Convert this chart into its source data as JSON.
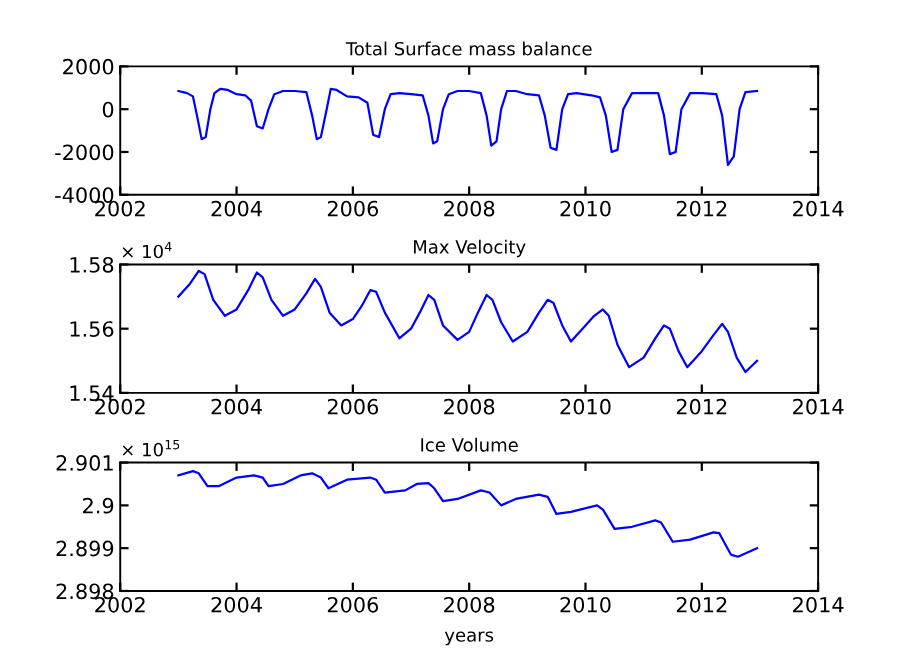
{
  "chart_data": [
    {
      "type": "line",
      "title": "Total Surface mass balance",
      "xlim": [
        2002,
        2014
      ],
      "xticks": [
        2002,
        2004,
        2006,
        2008,
        2010,
        2012,
        2014
      ],
      "ylim": [
        -4000,
        2000
      ],
      "yticks": [
        -4000,
        -2000,
        0,
        2000
      ],
      "grid": false,
      "legend": false,
      "series": [
        {
          "color": "#0000ff",
          "x": [
            2003.0,
            2003.15,
            2003.25,
            2003.32,
            2003.4,
            2003.47,
            2003.55,
            2003.62,
            2003.72,
            2003.85,
            2004.0,
            2004.15,
            2004.25,
            2004.35,
            2004.45,
            2004.55,
            2004.65,
            2004.8,
            2005.0,
            2005.2,
            2005.3,
            2005.38,
            2005.45,
            2005.55,
            2005.62,
            2005.72,
            2005.9,
            2006.1,
            2006.25,
            2006.35,
            2006.45,
            2006.55,
            2006.65,
            2006.8,
            2007.0,
            2007.2,
            2007.3,
            2007.38,
            2007.45,
            2007.55,
            2007.65,
            2007.8,
            2008.0,
            2008.2,
            2008.3,
            2008.38,
            2008.47,
            2008.55,
            2008.65,
            2008.8,
            2009.0,
            2009.2,
            2009.3,
            2009.4,
            2009.5,
            2009.6,
            2009.7,
            2009.85,
            2010.1,
            2010.25,
            2010.35,
            2010.45,
            2010.55,
            2010.65,
            2010.8,
            2011.0,
            2011.25,
            2011.35,
            2011.45,
            2011.55,
            2011.65,
            2011.8,
            2012.0,
            2012.25,
            2012.35,
            2012.45,
            2012.55,
            2012.65,
            2012.75,
            2012.95
          ],
          "values": [
            850,
            750,
            600,
            -300,
            -1400,
            -1300,
            0,
            750,
            950,
            900,
            700,
            650,
            400,
            -800,
            -900,
            0,
            700,
            850,
            850,
            800,
            -300,
            -1400,
            -1300,
            0,
            950,
            900,
            600,
            550,
            300,
            -1200,
            -1300,
            0,
            700,
            750,
            700,
            650,
            -300,
            -1600,
            -1500,
            0,
            700,
            850,
            850,
            750,
            -300,
            -1700,
            -1500,
            0,
            850,
            850,
            700,
            650,
            -300,
            -1800,
            -1900,
            0,
            700,
            750,
            650,
            550,
            -300,
            -2000,
            -1900,
            0,
            750,
            750,
            750,
            -300,
            -2100,
            -2000,
            0,
            750,
            750,
            700,
            -300,
            -2600,
            -2200,
            0,
            800,
            850
          ]
        }
      ]
    },
    {
      "type": "line",
      "title": "Max Velocity",
      "annotations": [
        "× 10$^{4}$"
      ],
      "xlim": [
        2002,
        2014
      ],
      "xticks": [
        2002,
        2004,
        2006,
        2008,
        2010,
        2012,
        2014
      ],
      "ylim": [
        1.54,
        1.58
      ],
      "yticks": [
        1.54,
        1.56,
        1.58
      ],
      "grid": false,
      "legend": false,
      "series": [
        {
          "color": "#0000ff",
          "x": [
            2003.0,
            2003.2,
            2003.35,
            2003.45,
            2003.6,
            2003.8,
            2004.0,
            2004.2,
            2004.35,
            2004.45,
            2004.6,
            2004.8,
            2005.0,
            2005.2,
            2005.35,
            2005.45,
            2005.6,
            2005.8,
            2006.0,
            2006.15,
            2006.3,
            2006.4,
            2006.55,
            2006.8,
            2007.0,
            2007.15,
            2007.3,
            2007.4,
            2007.55,
            2007.8,
            2008.0,
            2008.15,
            2008.3,
            2008.4,
            2008.55,
            2008.75,
            2009.0,
            2009.2,
            2009.35,
            2009.45,
            2009.6,
            2009.75,
            2010.0,
            2010.15,
            2010.3,
            2010.4,
            2010.55,
            2010.75,
            2011.0,
            2011.2,
            2011.35,
            2011.45,
            2011.6,
            2011.75,
            2012.0,
            2012.2,
            2012.35,
            2012.45,
            2012.6,
            2012.75,
            2012.95
          ],
          "values": [
            1.57,
            1.574,
            1.578,
            1.577,
            1.569,
            1.564,
            1.566,
            1.572,
            1.5775,
            1.576,
            1.569,
            1.564,
            1.566,
            1.571,
            1.5755,
            1.573,
            1.565,
            1.561,
            1.563,
            1.567,
            1.572,
            1.5715,
            1.565,
            1.557,
            1.56,
            1.565,
            1.5705,
            1.569,
            1.561,
            1.5565,
            1.559,
            1.565,
            1.5705,
            1.569,
            1.562,
            1.556,
            1.559,
            1.565,
            1.569,
            1.568,
            1.561,
            1.556,
            1.561,
            1.564,
            1.566,
            1.564,
            1.555,
            1.548,
            1.551,
            1.557,
            1.561,
            1.56,
            1.553,
            1.548,
            1.553,
            1.558,
            1.5615,
            1.559,
            1.551,
            1.5465,
            1.55
          ]
        }
      ]
    },
    {
      "type": "line",
      "title": "Ice Volume",
      "xlabel": "years",
      "annotations": [
        "× 10$^{15}$"
      ],
      "xlim": [
        2002,
        2014
      ],
      "xticks": [
        2002,
        2004,
        2006,
        2008,
        2010,
        2012,
        2014
      ],
      "ylim": [
        2.898,
        2.901
      ],
      "yticks": [
        2.898,
        2.899,
        2.9,
        2.901
      ],
      "grid": false,
      "legend": false,
      "series": [
        {
          "color": "#0000ff",
          "x": [
            2003.0,
            2003.25,
            2003.35,
            2003.5,
            2003.7,
            2004.0,
            2004.3,
            2004.45,
            2004.55,
            2004.8,
            2005.1,
            2005.3,
            2005.45,
            2005.58,
            2005.9,
            2006.3,
            2006.4,
            2006.55,
            2006.9,
            2007.1,
            2007.3,
            2007.4,
            2007.55,
            2007.8,
            2008.2,
            2008.35,
            2008.55,
            2008.8,
            2009.2,
            2009.35,
            2009.5,
            2009.75,
            2010.2,
            2010.3,
            2010.5,
            2010.8,
            2011.2,
            2011.3,
            2011.5,
            2011.8,
            2012.2,
            2012.3,
            2012.5,
            2012.62,
            2012.95
          ],
          "values": [
            2.9007,
            2.9008,
            2.90075,
            2.90045,
            2.90045,
            2.90065,
            2.9007,
            2.90065,
            2.90045,
            2.9005,
            2.9007,
            2.90075,
            2.90065,
            2.9004,
            2.9006,
            2.90065,
            2.9006,
            2.9003,
            2.90035,
            2.9005,
            2.90052,
            2.9004,
            2.9001,
            2.90015,
            2.90035,
            2.9003,
            2.9,
            2.90015,
            2.90025,
            2.9002,
            2.8998,
            2.89985,
            2.9,
            2.8999,
            2.89945,
            2.8995,
            2.89965,
            2.8996,
            2.89915,
            2.8992,
            2.89937,
            2.89935,
            2.89885,
            2.8988,
            2.899
          ]
        }
      ]
    }
  ]
}
